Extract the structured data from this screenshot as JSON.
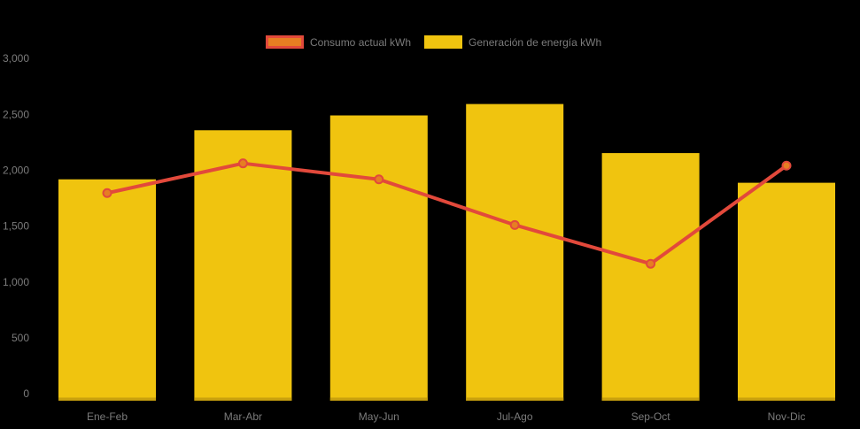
{
  "chart_data": {
    "type": "combo-bar-line",
    "title": "",
    "categories": [
      "Ene-Feb",
      "Mar-Abr",
      "May-Jun",
      "Jul-Ago",
      "Sep-Oct",
      "Nov-Dic"
    ],
    "series": [
      {
        "name": "Consumo actual kWh",
        "type": "line",
        "values": [
          1820,
          2080,
          1940,
          1540,
          1200,
          2060
        ],
        "color": "#E2493B",
        "marker_fill": "#E67E22"
      },
      {
        "name": "Generación de energía kWh",
        "type": "bar",
        "values": [
          1940,
          2370,
          2500,
          2600,
          2170,
          1910
        ],
        "color": "#F0C40F",
        "bar_shadow_color": "#C9A10E"
      }
    ],
    "xlabel": "",
    "ylabel": "",
    "ylim": [
      0,
      3000
    ],
    "y_ticks": [
      {
        "value": 0,
        "label": "0"
      },
      {
        "value": 500,
        "label": "500"
      },
      {
        "value": 1000,
        "label": "1,000"
      },
      {
        "value": 1500,
        "label": "1,500"
      },
      {
        "value": 2000,
        "label": "2,000"
      },
      {
        "value": 2500,
        "label": "2,500"
      },
      {
        "value": 3000,
        "label": "3,000"
      }
    ],
    "grid": false,
    "legend_position": "top",
    "background": "#000000",
    "axis_text_color": "#7B7B7B"
  }
}
